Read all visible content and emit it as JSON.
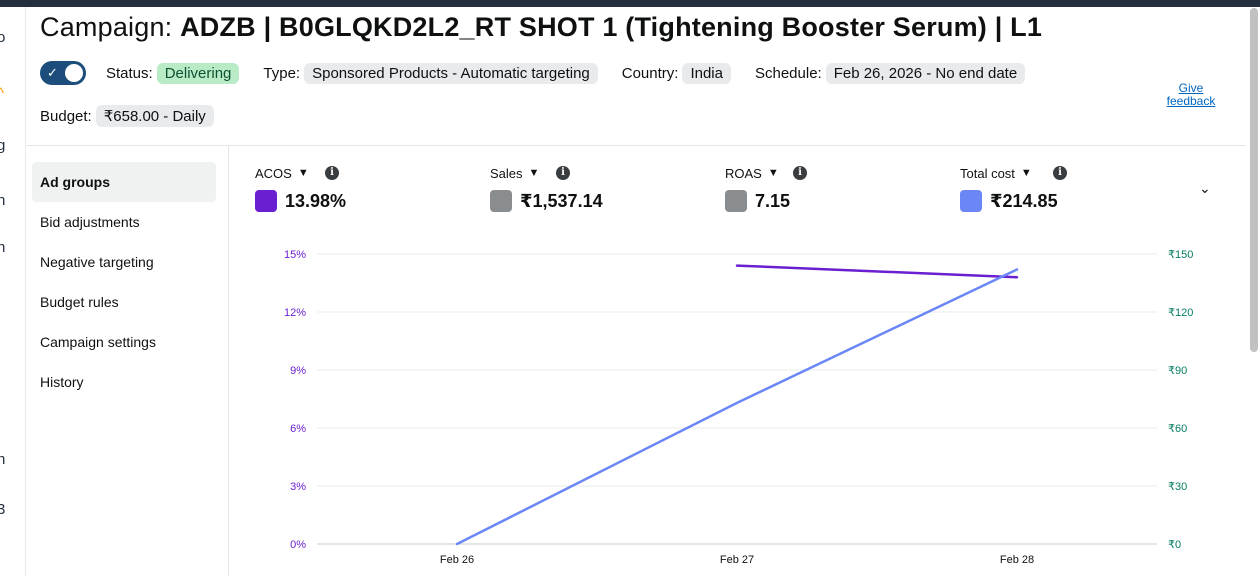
{
  "campaign": {
    "title_prefix": "Campaign:",
    "title_name": "ADZB | B0GLQKD2L2_RT SHOT 1 (Tightening Booster Serum) | L1",
    "status_label": "Status:",
    "status_value": "Delivering",
    "type_label": "Type:",
    "type_value": "Sponsored Products - Automatic targeting",
    "country_label": "Country:",
    "country_value": "India",
    "schedule_label": "Schedule:",
    "schedule_value": "Feb 26, 2026 - No end date",
    "budget_label": "Budget:",
    "budget_value": "₹658.00 - Daily",
    "enabled": true
  },
  "feedback_link": "Give feedback",
  "sidenav": {
    "items": [
      {
        "label": "Ad groups",
        "active": true
      },
      {
        "label": "Bid adjustments",
        "active": false
      },
      {
        "label": "Negative targeting",
        "active": false
      },
      {
        "label": "Budget rules",
        "active": false
      },
      {
        "label": "Campaign settings",
        "active": false
      },
      {
        "label": "History",
        "active": false
      }
    ]
  },
  "metrics": [
    {
      "label": "ACOS",
      "value": "13.98%",
      "color": "#6a1fd0"
    },
    {
      "label": "Sales",
      "value": "₹1,537.14",
      "color": "#8a8d90"
    },
    {
      "label": "ROAS",
      "value": "7.15",
      "color": "#8a8d90"
    },
    {
      "label": "Total cost",
      "value": "₹214.85",
      "color": "#6b86f5"
    }
  ],
  "chart_data": {
    "type": "line",
    "x": [
      "Feb 26",
      "Feb 27",
      "Feb 28"
    ],
    "y_left": {
      "ticks": [
        "0%",
        "3%",
        "6%",
        "9%",
        "12%",
        "15%"
      ],
      "ylim": [
        0,
        15
      ],
      "color": "#6a1fd0"
    },
    "y_right": {
      "ticks": [
        "₹0",
        "₹30",
        "₹60",
        "₹90",
        "₹120",
        "₹150"
      ],
      "ylim": [
        0,
        150
      ],
      "color": "#067d62"
    },
    "series": [
      {
        "name": "ACOS",
        "axis": "left",
        "color": "#6a1fd0",
        "values": [
          null,
          14.4,
          13.8
        ]
      },
      {
        "name": "Total cost",
        "axis": "right",
        "color": "#6b86f5",
        "values": [
          0,
          73,
          142
        ]
      }
    ],
    "grid": true
  }
}
